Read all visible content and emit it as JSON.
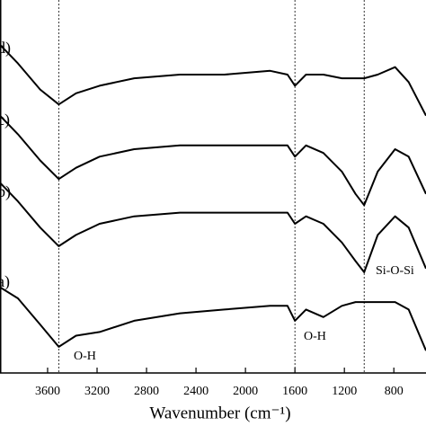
{
  "chart_data": {
    "type": "line",
    "x_label": "Wavenumber (cm⁻¹)",
    "x": [
      3985,
      3840,
      3660,
      3510,
      3370,
      3180,
      2900,
      2530,
      2170,
      1800,
      1660,
      1600,
      1510,
      1370,
      1220,
      1110,
      1040,
      930,
      790,
      680,
      540
    ],
    "series": [
      {
        "name": "d)",
        "color": "#000000",
        "values": [
          88,
          83,
          76,
          72,
          75,
          77,
          79,
          80,
          80,
          81,
          80,
          77,
          80,
          80,
          79,
          79,
          79,
          80,
          82,
          78,
          69
        ]
      },
      {
        "name": "c)",
        "color": "#000000",
        "values": [
          69,
          64,
          57,
          52,
          55,
          58,
          60,
          61,
          61,
          61,
          61,
          58,
          61,
          59,
          54,
          48,
          45,
          54,
          60,
          58,
          48
        ]
      },
      {
        "name": "b)",
        "color": "#000000",
        "values": [
          51,
          46,
          39,
          34,
          37,
          40,
          42,
          43,
          43,
          43,
          43,
          40,
          42,
          40,
          35,
          30,
          27,
          37,
          42,
          39,
          28
        ]
      },
      {
        "name": "a)",
        "color": "#000000",
        "values": [
          23,
          20,
          13,
          7,
          10,
          11,
          14,
          16,
          17,
          18,
          18,
          14,
          17,
          15,
          18,
          19,
          19,
          19,
          19,
          17,
          6
        ]
      }
    ],
    "xlim": [
      3985,
      540
    ],
    "xticks": [
      3600,
      3200,
      2800,
      2400,
      2000,
      1600,
      1200,
      800
    ],
    "ylim": [
      0,
      100
    ],
    "reference_lines": [
      3510,
      1600,
      1040
    ],
    "annotations": [
      "O-H",
      "O-H",
      "Si-O-Si"
    ]
  }
}
